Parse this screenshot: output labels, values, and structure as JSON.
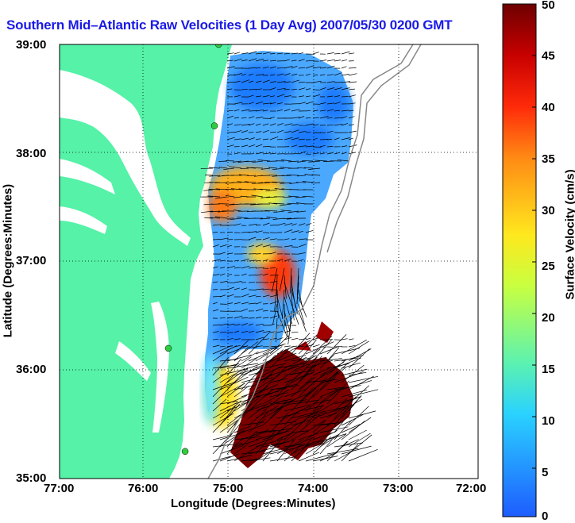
{
  "title": "Southern Mid–Atlantic Raw Velocities (1 Day Avg) 2007/05/30 0200 GMT",
  "chart_data": {
    "type": "heatmap",
    "xlabel": "Longitude (Degrees:Minutes)",
    "ylabel": "Latitude (Degrees:Minutes)",
    "x_ticks": [
      "77:00",
      "76:00",
      "75:00",
      "74:00",
      "73:00",
      "72:00"
    ],
    "y_ticks": [
      "39:00",
      "38:00",
      "37:00",
      "36:00",
      "35:00"
    ],
    "xlim": [
      -77,
      -72
    ],
    "ylim": [
      35,
      39
    ],
    "grid": true,
    "colorbar": {
      "label": "Surface Velocity (cm/s)",
      "range": [
        0,
        50
      ],
      "ticks": [
        "0",
        "5",
        "10",
        "15",
        "20",
        "25",
        "30",
        "35",
        "40",
        "45",
        "50"
      ]
    },
    "colors": {
      "land": "#55f2a8",
      "water": "#ffffff",
      "low_velocity": "#1e8cff",
      "high_velocity": "#7a0000"
    },
    "station_markers": [
      {
        "lon": -75.1,
        "lat": 39.0
      },
      {
        "lon": -75.15,
        "lat": 38.25
      },
      {
        "lon": -75.7,
        "lat": 36.2
      },
      {
        "lon": -75.5,
        "lat": 35.25
      }
    ]
  }
}
